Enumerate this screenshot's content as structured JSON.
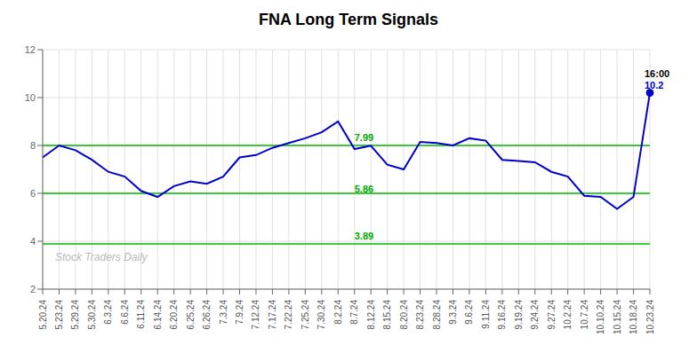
{
  "chart_data": {
    "type": "line",
    "title": "FNA Long Term Signals",
    "categories": [
      "5.20.24",
      "5.23.24",
      "5.29.24",
      "5.30.24",
      "6.3.24",
      "6.6.24",
      "6.11.24",
      "6.14.24",
      "6.20.24",
      "6.25.24",
      "6.26.24",
      "7.3.24",
      "7.9.24",
      "7.12.24",
      "7.17.24",
      "7.22.24",
      "7.25.24",
      "7.30.24",
      "8.2.24",
      "8.7.24",
      "8.12.24",
      "8.15.24",
      "8.20.24",
      "8.23.24",
      "8.28.24",
      "9.3.24",
      "9.6.24",
      "9.11.24",
      "9.16.24",
      "9.19.24",
      "9.24.24",
      "9.27.24",
      "10.2.24",
      "10.7.24",
      "10.10.24",
      "10.15.24",
      "10.18.24",
      "10.23.24"
    ],
    "values": [
      7.5,
      8.0,
      7.8,
      7.4,
      6.9,
      6.7,
      6.1,
      5.85,
      6.3,
      6.5,
      6.4,
      6.7,
      7.5,
      7.6,
      7.9,
      8.1,
      8.3,
      8.55,
      9.0,
      7.85,
      7.99,
      7.2,
      7.0,
      8.15,
      8.1,
      8.0,
      8.3,
      8.2,
      7.4,
      7.35,
      7.3,
      6.9,
      6.7,
      5.9,
      5.85,
      5.35,
      5.85,
      10.2
    ],
    "color": "#0000cc",
    "ylim": [
      2,
      12
    ],
    "yticks": [
      2,
      4,
      6,
      8,
      10,
      12
    ],
    "grid": true,
    "hlines": [
      {
        "y": 8.0,
        "color": "#00bb00"
      },
      {
        "y": 6.0,
        "color": "#00bb00"
      },
      {
        "y": 3.89,
        "color": "#00bb00"
      }
    ],
    "annotations": [
      {
        "text": "7.99",
        "x": "8.7.24",
        "y": 7.99,
        "color": "#00aa00"
      },
      {
        "text": "5.86",
        "x": "8.7.24",
        "y": 5.86,
        "color": "#00aa00"
      },
      {
        "text": "3.89",
        "x": "8.7.24",
        "y": 3.89,
        "color": "#00aa00"
      },
      {
        "text": "16:00",
        "x": "10.23.24",
        "y": 10.2,
        "color": "#000000"
      },
      {
        "text": "10.2",
        "x": "10.23.24",
        "y": 10.2,
        "color": "#0000cc"
      }
    ],
    "watermark": "Stock Traders Daily"
  }
}
